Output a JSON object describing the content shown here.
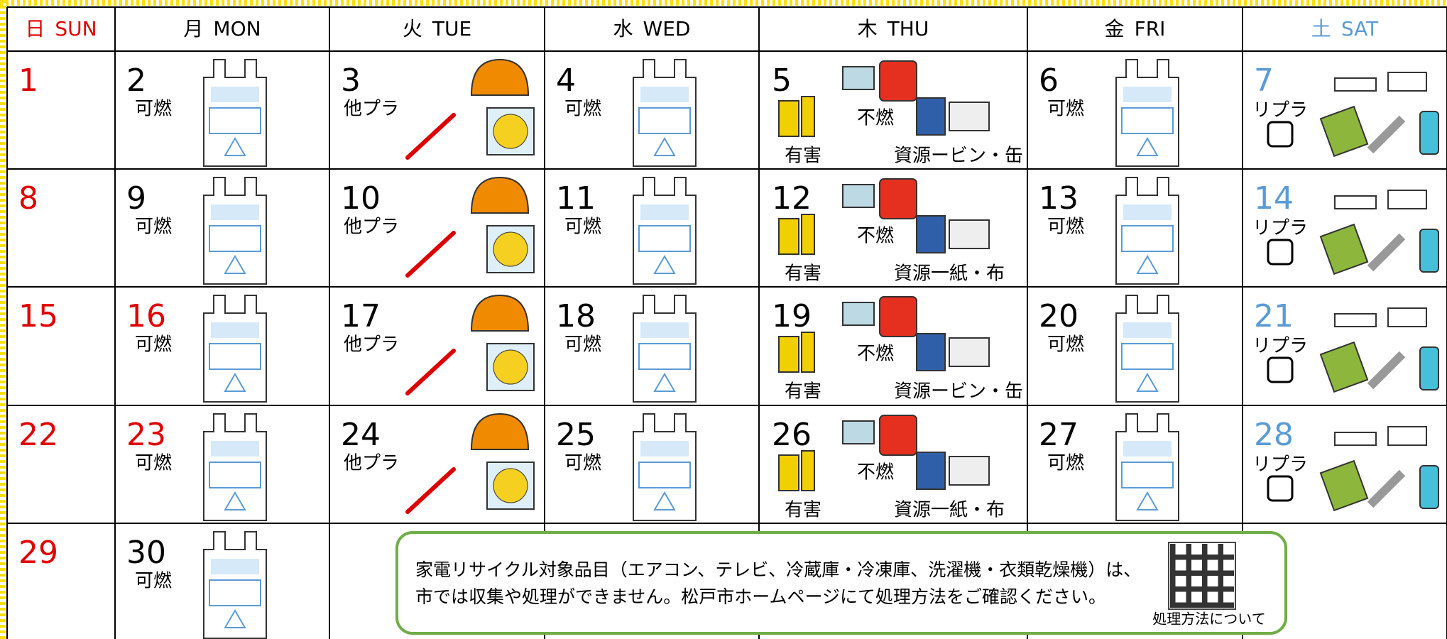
{
  "header": {
    "days": [
      {
        "jp": "日",
        "en": "SUN",
        "color": "#e00000"
      },
      {
        "jp": "月",
        "en": "MON"
      },
      {
        "jp": "火",
        "en": "TUE"
      },
      {
        "jp": "水",
        "en": "WED"
      },
      {
        "jp": "木",
        "en": "THU"
      },
      {
        "jp": "金",
        "en": "FRI"
      },
      {
        "jp": "土",
        "en": "SAT",
        "color": "#5b9bd5"
      }
    ]
  },
  "weeks": [
    [
      {
        "day": "1",
        "color": "#e00000"
      },
      {
        "day": "2",
        "items": [
          "可燃"
        ]
      },
      {
        "day": "3",
        "items": [
          "他プラ"
        ]
      },
      {
        "day": "4",
        "items": [
          "可燃"
        ]
      },
      {
        "day": "5",
        "items": [
          "不燃",
          "有害",
          "資源ービン・缶"
        ]
      },
      {
        "day": "6",
        "items": [
          "可燃"
        ]
      },
      {
        "day": "7",
        "color": "#5b9bd5",
        "items": [
          "リプラ"
        ]
      }
    ],
    [
      {
        "day": "8",
        "color": "#e00000"
      },
      {
        "day": "9",
        "items": [
          "可燃"
        ]
      },
      {
        "day": "10",
        "items": [
          "他プラ"
        ]
      },
      {
        "day": "11",
        "items": [
          "可燃"
        ]
      },
      {
        "day": "12",
        "items": [
          "不燃",
          "有害",
          "資源一紙・布"
        ]
      },
      {
        "day": "13",
        "items": [
          "可燃"
        ]
      },
      {
        "day": "14",
        "color": "#5b9bd5",
        "items": [
          "リプラ"
        ]
      }
    ],
    [
      {
        "day": "15",
        "color": "#e00000"
      },
      {
        "day": "16",
        "color": "#e00000",
        "items": [
          "可燃"
        ]
      },
      {
        "day": "17",
        "items": [
          "他プラ"
        ]
      },
      {
        "day": "18",
        "items": [
          "可燃"
        ]
      },
      {
        "day": "19",
        "items": [
          "不燃",
          "有害",
          "資源ービン・缶"
        ]
      },
      {
        "day": "20",
        "items": [
          "可燃"
        ]
      },
      {
        "day": "21",
        "color": "#5b9bd5",
        "items": [
          "リプラ"
        ]
      }
    ],
    [
      {
        "day": "22",
        "color": "#e00000"
      },
      {
        "day": "23",
        "color": "#e00000",
        "items": [
          "可燃"
        ]
      },
      {
        "day": "24",
        "items": [
          "他プラ"
        ]
      },
      {
        "day": "25",
        "items": [
          "可燃"
        ]
      },
      {
        "day": "26",
        "items": [
          "不燃",
          "有害",
          "資源一紙・布"
        ]
      },
      {
        "day": "27",
        "items": [
          "可燃"
        ]
      },
      {
        "day": "28",
        "color": "#5b9bd5",
        "items": [
          "リプラ"
        ]
      }
    ],
    [
      {
        "day": "29",
        "color": "#e00000"
      },
      {
        "day": "30",
        "items": [
          "可燃"
        ]
      }
    ]
  ],
  "notice": {
    "lines": [
      "家電リサイクル対象品目（エアコン、テレビ、冷蔵庫・冷凍庫、洗濯機・衣類乾燥機）は、",
      "市では収集や処理ができません。松戸市ホームページにて処理方法をご確認ください。"
    ],
    "qr_caption": "処理方法について"
  }
}
